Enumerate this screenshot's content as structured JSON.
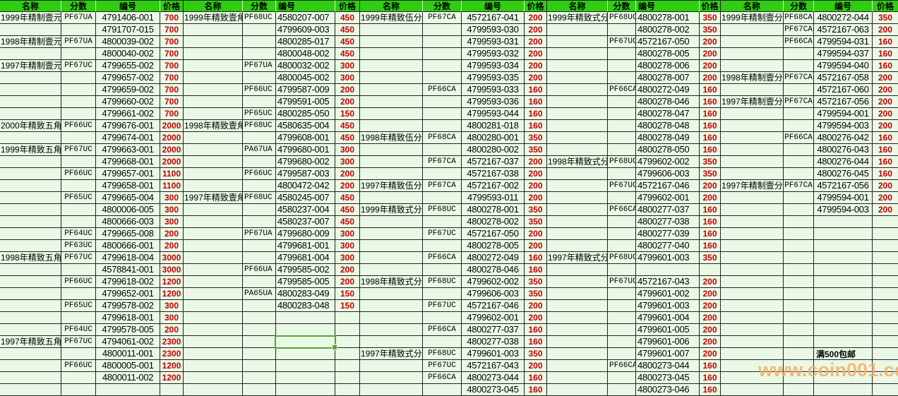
{
  "app": {
    "description": "Spreadsheet price list of graded coins, five repeated column groups"
  },
  "table": {
    "columns": [
      "名称",
      "分数",
      "编号",
      "价格"
    ],
    "groups": [
      {
        "rows": [
          [
            "1999年精制壹元",
            "PF67UA",
            "4791406-001",
            "700"
          ],
          [
            "",
            "",
            "4791707-015",
            "700"
          ],
          [
            "1998年精制壹元",
            "PF67UA",
            "4800039-002",
            "700"
          ],
          [
            "",
            "",
            "4800040-002",
            "700"
          ],
          [
            "1997年精制壹元",
            "PF67UC",
            "4799655-002",
            "700"
          ],
          [
            "",
            "",
            "4799657-002",
            "700"
          ],
          [
            "",
            "",
            "4799659-002",
            "700"
          ],
          [
            "",
            "",
            "4799660-002",
            "700"
          ],
          [
            "",
            "",
            "4799661-002",
            "700"
          ],
          [
            "2000年精致五角",
            "PF66UC",
            "4799676-001",
            "2000"
          ],
          [
            "",
            "",
            "4799674-001",
            "2000"
          ],
          [
            "1999年精致五角",
            "PF67UC",
            "4799663-001",
            "2000"
          ],
          [
            "",
            "",
            "4799668-001",
            "2000"
          ],
          [
            "",
            "PF66UC",
            "4799657-001",
            "1100"
          ],
          [
            "",
            "",
            "4799658-001",
            "1100"
          ],
          [
            "",
            "PF65UC",
            "4799665-004",
            "300"
          ],
          [
            "",
            "",
            "4800006-005",
            "300"
          ],
          [
            "",
            "",
            "4800666-003",
            "300"
          ],
          [
            "",
            "PF64UC",
            "4799665-008",
            "200"
          ],
          [
            "",
            "PF63UC",
            "4800666-001",
            "200"
          ],
          [
            "1998年精致五角",
            "PF67UC",
            "4799618-004",
            "3000"
          ],
          [
            "",
            "",
            "4578841-001",
            "3000"
          ],
          [
            "",
            "PF66UC",
            "4799618-002",
            "1200"
          ],
          [
            "",
            "",
            "4799652-001",
            "1200"
          ],
          [
            "",
            "PF65UC",
            "4799578-002",
            "300"
          ],
          [
            "",
            "",
            "4799618-001",
            "300"
          ],
          [
            "",
            "PF64UC",
            "4799578-005",
            "200"
          ],
          [
            "1997年精致五角",
            "PF67UC",
            "4794061-002",
            "2300"
          ],
          [
            "",
            "",
            "4800011-001",
            "2300"
          ],
          [
            "",
            "PF66UC",
            "4800005-001",
            "1200"
          ],
          [
            "",
            "",
            "4800011-002",
            "1200"
          ],
          [
            "",
            "",
            "",
            ""
          ]
        ]
      },
      {
        "rows": [
          [
            "1999年精致壹角",
            "PF68UC",
            "4580207-007",
            "450"
          ],
          [
            "",
            "",
            "4799609-003",
            "450"
          ],
          [
            "",
            "",
            "4800285-017",
            "450"
          ],
          [
            "",
            "",
            "4800048-002",
            "450"
          ],
          [
            "",
            "PF67UA",
            "4800032-002",
            "300"
          ],
          [
            "",
            "",
            "4800045-002",
            "300"
          ],
          [
            "",
            "PF66UC",
            "4799587-009",
            "200"
          ],
          [
            "",
            "",
            "4799591-005",
            "200"
          ],
          [
            "",
            "PF65UC",
            "4800285-050",
            "150"
          ],
          [
            "1998年精致壹角",
            "PF68UC",
            "4580635-004",
            "450"
          ],
          [
            "",
            "",
            "4799608-001",
            "450"
          ],
          [
            "",
            "PA67UA",
            "4799680-001",
            "300"
          ],
          [
            "",
            "",
            "4799680-002",
            "300"
          ],
          [
            "",
            "PF66UC",
            "4799587-003",
            "200"
          ],
          [
            "",
            "",
            "4800472-042",
            "200"
          ],
          [
            "1997年精致壹角",
            "PF68UC",
            "4580245-007",
            "450"
          ],
          [
            "",
            "",
            "4580237-004",
            "450"
          ],
          [
            "",
            "",
            "4580237-007",
            "450"
          ],
          [
            "",
            "PF67UA",
            "4799680-009",
            "300"
          ],
          [
            "",
            "",
            "4799681-001",
            "300"
          ],
          [
            "",
            "",
            "4799681-004",
            "300"
          ],
          [
            "",
            "PF66UA",
            "4799585-002",
            "200"
          ],
          [
            "",
            "",
            "4799585-005",
            "200"
          ],
          [
            "",
            "PA65UA",
            "4800283-049",
            "150"
          ],
          [
            "",
            "",
            "4800283-048",
            "150"
          ],
          [
            "",
            "",
            "",
            ""
          ],
          [
            "",
            "",
            "",
            ""
          ],
          [
            "",
            "",
            "",
            ""
          ],
          [
            "",
            "",
            "",
            ""
          ],
          [
            "",
            "",
            "",
            ""
          ],
          [
            "",
            "",
            "",
            ""
          ],
          [
            "",
            "",
            "",
            ""
          ]
        ]
      },
      {
        "rows": [
          [
            "1999年精致伍分",
            "PF67CA",
            "4572167-041",
            "200"
          ],
          [
            "",
            "",
            "4799593-030",
            "200"
          ],
          [
            "",
            "",
            "4799593-031",
            "200"
          ],
          [
            "",
            "",
            "4799593-032",
            "200"
          ],
          [
            "",
            "",
            "4799593-034",
            "200"
          ],
          [
            "",
            "",
            "4799593-035",
            "200"
          ],
          [
            "",
            "PF66CA",
            "4799593-033",
            "160"
          ],
          [
            "",
            "",
            "4799593-036",
            "160"
          ],
          [
            "",
            "",
            "4799593-044",
            "160"
          ],
          [
            "",
            "",
            "4800281-018",
            "160"
          ],
          [
            "1998年精致伍分",
            "PF68CA",
            "4800280-001",
            "350"
          ],
          [
            "",
            "",
            "4800280-002",
            "350"
          ],
          [
            "",
            "PF67CA",
            "4572167-037",
            "200"
          ],
          [
            "",
            "",
            "4572167-038",
            "200"
          ],
          [
            "1997年精致伍分",
            "PF67CA",
            "4572167-002",
            "200"
          ],
          [
            "",
            "",
            "4799593-011",
            "200"
          ],
          [
            "1999年精致式分",
            "PF68UC",
            "4800278-001",
            "350"
          ],
          [
            "",
            "",
            "4800278-002",
            "350"
          ],
          [
            "",
            "PF67UC",
            "4572167-050",
            "200"
          ],
          [
            "",
            "",
            "4800278-005",
            "200"
          ],
          [
            "",
            "PF66CA",
            "4800272-049",
            "160"
          ],
          [
            "",
            "",
            "4800278-046",
            "160"
          ],
          [
            "1998年精致式分",
            "PF68UC",
            "4799602-002",
            "350"
          ],
          [
            "",
            "",
            "4799606-003",
            "350"
          ],
          [
            "",
            "PF67UC",
            "4572167-046",
            "200"
          ],
          [
            "",
            "",
            "4799602-001",
            "200"
          ],
          [
            "",
            "PF66CA",
            "4800277-037",
            "160"
          ],
          [
            "",
            "",
            "4800277-038",
            "160"
          ],
          [
            "1997年精致式分",
            "PF68UC",
            "4799601-003",
            "350"
          ],
          [
            "",
            "PF67UC",
            "4572167-043",
            "200"
          ],
          [
            "",
            "PF66CA",
            "4800273-044",
            "160"
          ],
          [
            "",
            "",
            "4800273-045",
            "160"
          ]
        ]
      },
      {
        "rows": [
          [
            "1999年精致式分",
            "PF68UC",
            "4800278-001",
            "350"
          ],
          [
            "",
            "",
            "4800278-002",
            "350"
          ],
          [
            "",
            "PF67UC",
            "4572167-050",
            "200"
          ],
          [
            "",
            "",
            "4800278-005",
            "200"
          ],
          [
            "",
            "",
            "4800278-006",
            "200"
          ],
          [
            "",
            "",
            "4800278-007",
            "200"
          ],
          [
            "",
            "PF66CA",
            "4800272-049",
            "160"
          ],
          [
            "",
            "",
            "4800278-046",
            "160"
          ],
          [
            "",
            "",
            "4800278-047",
            "160"
          ],
          [
            "",
            "",
            "4800278-048",
            "160"
          ],
          [
            "",
            "",
            "4800278-049",
            "160"
          ],
          [
            "",
            "",
            "4800278-050",
            "160"
          ],
          [
            "1998年精致式分",
            "PF68UC",
            "4799602-002",
            "350"
          ],
          [
            "",
            "",
            "4799606-003",
            "350"
          ],
          [
            "",
            "PF67UC",
            "4572167-046",
            "200"
          ],
          [
            "",
            "",
            "4799602-001",
            "200"
          ],
          [
            "",
            "PF66CA",
            "4800277-037",
            "160"
          ],
          [
            "",
            "",
            "4800277-038",
            "160"
          ],
          [
            "",
            "",
            "4800277-039",
            "160"
          ],
          [
            "",
            "",
            "4800277-040",
            "160"
          ],
          [
            "1997年精致式分",
            "PF68UC",
            "4799601-003",
            "350"
          ],
          [
            "",
            "",
            "",
            ""
          ],
          [
            "",
            "PF67UC",
            "4572167-043",
            "200"
          ],
          [
            "",
            "",
            "4799601-002",
            "200"
          ],
          [
            "",
            "",
            "4799601-003",
            "200"
          ],
          [
            "",
            "",
            "4799601-004",
            "200"
          ],
          [
            "",
            "",
            "4799601-005",
            "200"
          ],
          [
            "",
            "",
            "4799601-006",
            "200"
          ],
          [
            "",
            "",
            "4799601-007",
            "200"
          ],
          [
            "",
            "PF66CA",
            "4800273-044",
            "160"
          ],
          [
            "",
            "",
            "4800273-045",
            "160"
          ],
          [
            "",
            "",
            "4800273-046",
            "160"
          ]
        ]
      },
      {
        "rows": [
          [
            "1999年精制壹分",
            "PF68CA",
            "4800272-044",
            "350"
          ],
          [
            "",
            "PF67CA",
            "4572167-063",
            "200"
          ],
          [
            "",
            "PF66CA",
            "4799594-031",
            "160"
          ],
          [
            "",
            "",
            "4799594-037",
            "160"
          ],
          [
            "",
            "",
            "4799594-040",
            "160"
          ],
          [
            "1998年精制壹分",
            "PF67CA",
            "4572167-058",
            "200"
          ],
          [
            "",
            "",
            "4572167-060",
            "200"
          ],
          [
            "1997年精制壹分",
            "PF67CA",
            "4572167-056",
            "200"
          ],
          [
            "",
            "",
            "4799594-001",
            "200"
          ],
          [
            "",
            "",
            "4799594-003",
            "200"
          ],
          [
            "",
            "PF66CA",
            "4800276-042",
            "160"
          ],
          [
            "",
            "",
            "4800276-043",
            "160"
          ],
          [
            "",
            "",
            "4800276-044",
            "160"
          ],
          [
            "",
            "",
            "4800276-045",
            "160"
          ],
          [
            "1997年精制壹分",
            "PF67CA",
            "4572167-056",
            "200"
          ],
          [
            "",
            "",
            "4799594-001",
            "200"
          ],
          [
            "",
            "",
            "4799594-003",
            "200"
          ],
          [
            "",
            "",
            "",
            ""
          ],
          [
            "",
            "",
            "",
            ""
          ],
          [
            "",
            "",
            "",
            ""
          ],
          [
            "",
            "",
            "",
            ""
          ],
          [
            "",
            "",
            "",
            ""
          ],
          [
            "",
            "",
            "",
            ""
          ],
          [
            "",
            "",
            "",
            ""
          ],
          [
            "",
            "",
            "",
            ""
          ],
          [
            "",
            "",
            "",
            ""
          ],
          [
            "",
            "",
            "",
            ""
          ],
          [
            "",
            "",
            "",
            ""
          ],
          [
            "",
            "",
            "",
            ""
          ],
          [
            "",
            "",
            "",
            ""
          ],
          [
            "",
            "",
            "",
            ""
          ],
          [
            "",
            "",
            "",
            ""
          ]
        ]
      }
    ]
  },
  "selection": {
    "group_index": 2,
    "row": 28,
    "column": "编号",
    "value": ""
  },
  "note": {
    "text": "满500包邮"
  },
  "watermark": {
    "text": "www.coin001.com"
  },
  "colors": {
    "header_bg": "#2fce11",
    "cell_bg": "#eaf9e5",
    "price_text": "#c00000",
    "selection_border": "#56a43c",
    "watermark_text": "#f6ae68"
  }
}
